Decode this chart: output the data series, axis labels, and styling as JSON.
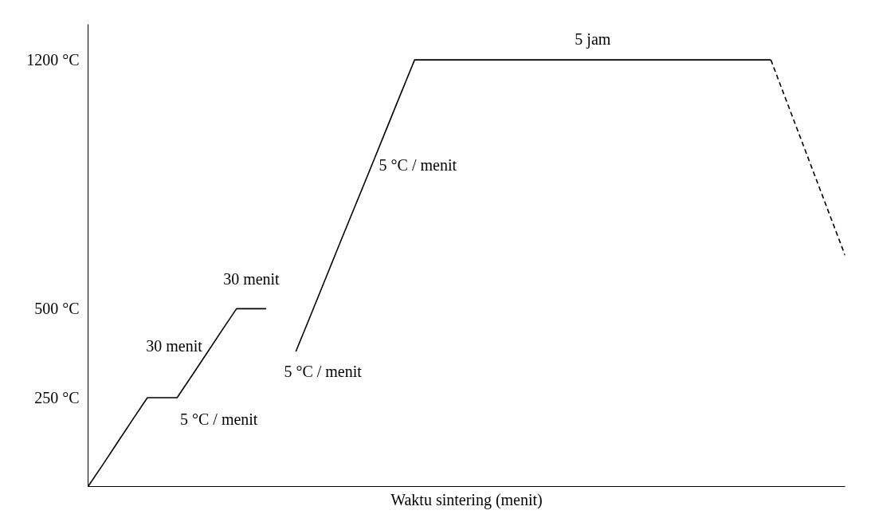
{
  "chart_data": {
    "type": "line",
    "xlabel": "Waktu sintering (menit)",
    "categories": [
      null,
      null,
      null,
      null,
      null,
      null,
      null,
      null,
      null,
      null,
      null,
      null,
      null,
      null,
      null,
      null,
      null,
      null,
      null,
      null,
      null,
      null,
      null,
      null,
      null,
      null,
      null,
      null,
      null,
      null,
      null,
      null,
      null,
      null,
      null,
      null,
      null,
      null,
      null,
      null,
      null,
      null,
      null,
      null,
      null,
      null,
      null,
      null,
      null,
      null,
      null,
      null
    ],
    "ylim": [
      0,
      1300
    ],
    "yticks": [
      {
        "value": 250,
        "label": "250 °C"
      },
      {
        "value": 500,
        "label": "500 °C"
      },
      {
        "value": 1200,
        "label": "1200 °C"
      }
    ],
    "tick_labels": "y",
    "marker": "none",
    "line_style": "solid",
    "series": [
      {
        "color": "#000000",
        "values": [
          0,
          62,
          125,
          188,
          250,
          250,
          250,
          312,
          375,
          438,
          500,
          500,
          500,
          null,
          null,
          null,
          null,
          null,
          null,
          null,
          null,
          null,
          null,
          null,
          null,
          null,
          null,
          null,
          null,
          null,
          null,
          null,
          null,
          null,
          null,
          null,
          null,
          null,
          null,
          null,
          null,
          null,
          null,
          null,
          null,
          null,
          null,
          null,
          null,
          null,
          null,
          null
        ]
      },
      {
        "color": "#000000",
        "values": [
          null,
          null,
          null,
          null,
          null,
          null,
          null,
          null,
          null,
          null,
          null,
          null,
          null,
          null,
          380,
          482,
          585,
          688,
          790,
          892,
          995,
          1098,
          1200,
          1200,
          1200,
          1200,
          1200,
          1200,
          1200,
          1200,
          1200,
          1200,
          1200,
          1200,
          1200,
          1200,
          1200,
          1200,
          1200,
          1200,
          1200,
          1200,
          1200,
          1200,
          1200,
          1200,
          1200,
          null,
          null,
          null,
          null,
          null
        ]
      },
      {
        "color": "#000000",
        "line_style": "dashed",
        "values": [
          null,
          null,
          null,
          null,
          null,
          null,
          null,
          null,
          null,
          null,
          null,
          null,
          null,
          null,
          null,
          null,
          null,
          null,
          null,
          null,
          null,
          null,
          null,
          null,
          null,
          null,
          null,
          null,
          null,
          null,
          null,
          null,
          null,
          null,
          null,
          null,
          null,
          null,
          null,
          null,
          null,
          null,
          null,
          null,
          null,
          null,
          1200,
          1090,
          980,
          870,
          760,
          650
        ]
      }
    ],
    "annotations": [
      "5 jam",
      "5 °C / menit",
      "30 menit",
      "30 menit",
      "5 °C / menit",
      "5 °C / menit"
    ]
  }
}
